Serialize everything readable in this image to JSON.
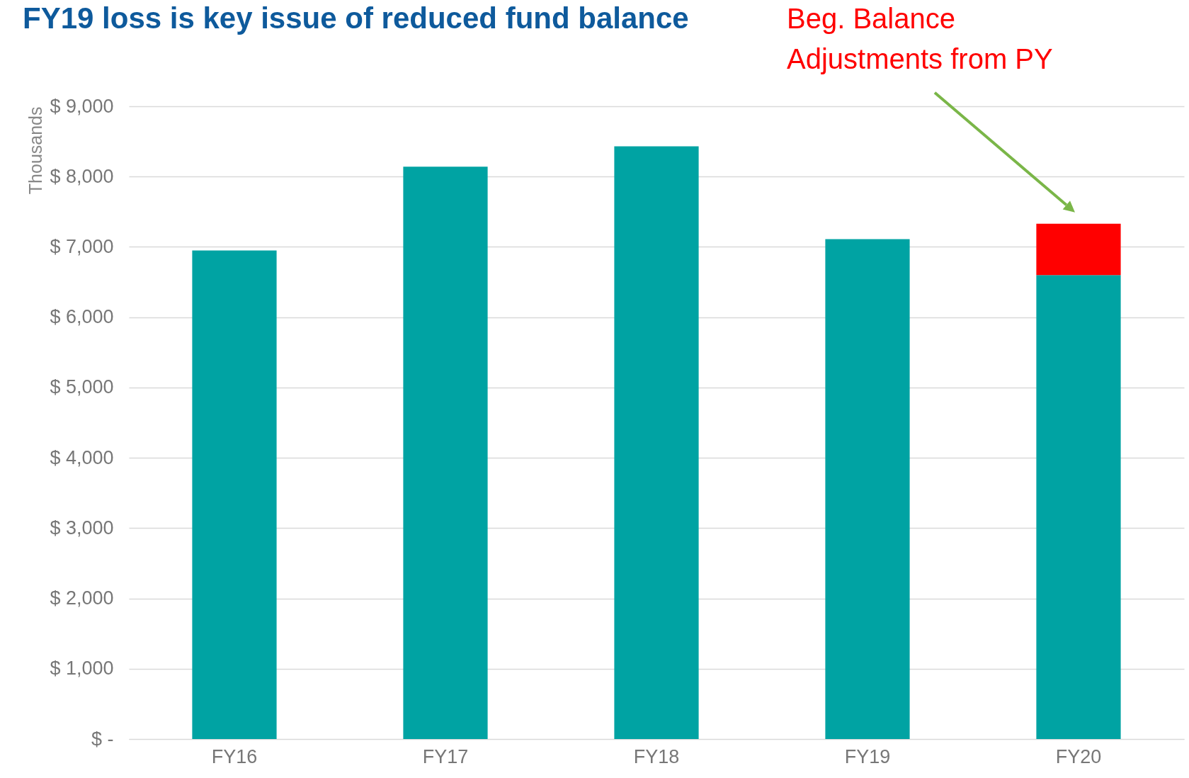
{
  "chart_data": {
    "type": "bar",
    "title": "FY19 loss is key issue of reduced fund balance",
    "ylabel": "Thousands",
    "categories": [
      "FY16",
      "FY17",
      "FY18",
      "FY19",
      "FY20"
    ],
    "stacked": true,
    "series": [
      {
        "color": "#00a3a3",
        "values": [
          6950,
          8140,
          8430,
          7110,
          6600
        ]
      },
      {
        "color": "#ff0000",
        "values": [
          null,
          null,
          null,
          null,
          730
        ]
      }
    ],
    "ylim": [
      0,
      9000
    ],
    "yticks": [
      {
        "value": 0,
        "label": "$ -"
      },
      {
        "value": 1000,
        "label": "$ 1,000"
      },
      {
        "value": 2000,
        "label": "$ 2,000"
      },
      {
        "value": 3000,
        "label": "$ 3,000"
      },
      {
        "value": 4000,
        "label": "$ 4,000"
      },
      {
        "value": 5000,
        "label": "$ 5,000"
      },
      {
        "value": 6000,
        "label": "$ 6,000"
      },
      {
        "value": 7000,
        "label": "$ 7,000"
      },
      {
        "value": 8000,
        "label": "$ 8,000"
      },
      {
        "value": 9000,
        "label": "$ 9,000"
      }
    ],
    "grid": "y",
    "annotations": [
      "Beg. Balance Adjustments from PY"
    ]
  }
}
